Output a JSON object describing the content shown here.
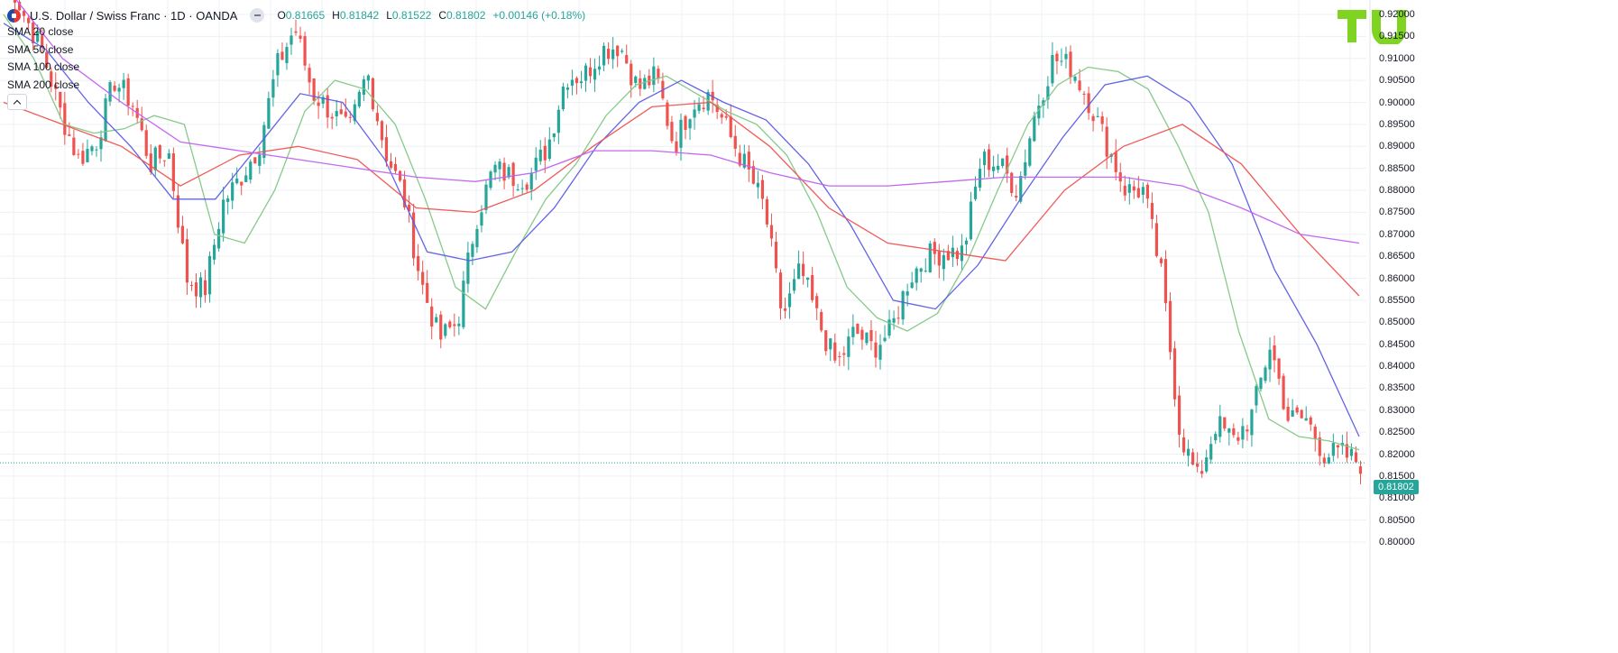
{
  "header": {
    "symbol": "U.S. Dollar / Swiss Franc · 1D · OANDA",
    "ohlc": {
      "open_label": "O",
      "open": "0.81665",
      "high_label": "H",
      "high": "0.81842",
      "low_label": "L",
      "low": "0.81522",
      "close_label": "C",
      "close": "0.81802",
      "change": "+0.00146 (+0.18%)"
    }
  },
  "indicators": [
    "SMA 20 close",
    "SMA 50 close",
    "SMA 100 close",
    "SMA 200 close"
  ],
  "current_price": "0.81802",
  "colors": {
    "up": "#26a69a",
    "down": "#ef5350",
    "sma20": "#81c784",
    "sma50": "#5b5be6",
    "sma100": "#ef5350",
    "sma200": "#c15ff2",
    "grid": "#eef0f4",
    "logo": "#7fd321"
  },
  "icons": [
    "flag-icon",
    "more-dots-icon",
    "chevron-up-icon",
    "logo"
  ],
  "chart_data": {
    "type": "line",
    "ylim": [
      0.8,
      0.92
    ],
    "yticks": [
      "0.92000",
      "0.91500",
      "0.91000",
      "0.90500",
      "0.90000",
      "0.89500",
      "0.89000",
      "0.88500",
      "0.88000",
      "0.87500",
      "0.87000",
      "0.86500",
      "0.86000",
      "0.85500",
      "0.85000",
      "0.84500",
      "0.84000",
      "0.83500",
      "0.83000",
      "0.82500",
      "0.82000",
      "0.81500",
      "0.81000",
      "0.80500",
      "0.80000"
    ],
    "close_path": [
      0.93,
      0.92,
      0.912,
      0.898,
      0.887,
      0.891,
      0.905,
      0.9,
      0.886,
      0.889,
      0.86,
      0.857,
      0.877,
      0.883,
      0.89,
      0.908,
      0.917,
      0.902,
      0.898,
      0.893,
      0.907,
      0.889,
      0.879,
      0.859,
      0.846,
      0.85,
      0.873,
      0.885,
      0.883,
      0.883,
      0.89,
      0.906,
      0.906,
      0.912,
      0.913,
      0.903,
      0.906,
      0.89,
      0.9,
      0.902,
      0.893,
      0.885,
      0.876,
      0.851,
      0.862,
      0.85,
      0.84,
      0.848,
      0.844,
      0.848,
      0.86,
      0.865,
      0.866,
      0.866,
      0.887,
      0.886,
      0.88,
      0.898,
      0.91,
      0.908,
      0.9,
      0.89,
      0.88,
      0.88,
      0.86,
      0.825,
      0.814,
      0.827,
      0.823,
      0.829,
      0.845,
      0.828,
      0.828,
      0.82,
      0.82,
      0.818
    ],
    "series": [
      {
        "name": "SMA 20 close",
        "values": [
          0.92,
          0.91,
          0.895,
          0.893,
          0.894,
          0.897,
          0.895,
          0.87,
          0.868,
          0.88,
          0.898,
          0.905,
          0.903,
          0.895,
          0.878,
          0.858,
          0.853,
          0.866,
          0.878,
          0.886,
          0.897,
          0.904,
          0.906,
          0.902,
          0.898,
          0.895,
          0.888,
          0.875,
          0.858,
          0.851,
          0.848,
          0.852,
          0.864,
          0.88,
          0.895,
          0.904,
          0.908,
          0.907,
          0.903,
          0.89,
          0.875,
          0.848,
          0.828,
          0.824,
          0.823,
          0.821
        ]
      },
      {
        "name": "SMA 50 close",
        "values": [
          0.918,
          0.912,
          0.9,
          0.89,
          0.878,
          0.878,
          0.89,
          0.902,
          0.9,
          0.887,
          0.866,
          0.864,
          0.866,
          0.876,
          0.89,
          0.9,
          0.905,
          0.9,
          0.896,
          0.886,
          0.872,
          0.855,
          0.853,
          0.863,
          0.878,
          0.892,
          0.904,
          0.906,
          0.9,
          0.886,
          0.862,
          0.845,
          0.824
        ]
      },
      {
        "name": "SMA 100 close",
        "values": [
          0.9,
          0.895,
          0.89,
          0.881,
          0.888,
          0.89,
          0.887,
          0.876,
          0.875,
          0.88,
          0.89,
          0.899,
          0.9,
          0.89,
          0.876,
          0.868,
          0.866,
          0.864,
          0.88,
          0.89,
          0.895,
          0.886,
          0.87,
          0.856
        ]
      },
      {
        "name": "SMA 200 close",
        "values": [
          0.927,
          0.91,
          0.9,
          0.891,
          0.889,
          0.887,
          0.885,
          0.883,
          0.882,
          0.884,
          0.889,
          0.889,
          0.888,
          0.884,
          0.881,
          0.881,
          0.882,
          0.883,
          0.883,
          0.883,
          0.881,
          0.876,
          0.87,
          0.868
        ]
      }
    ]
  }
}
